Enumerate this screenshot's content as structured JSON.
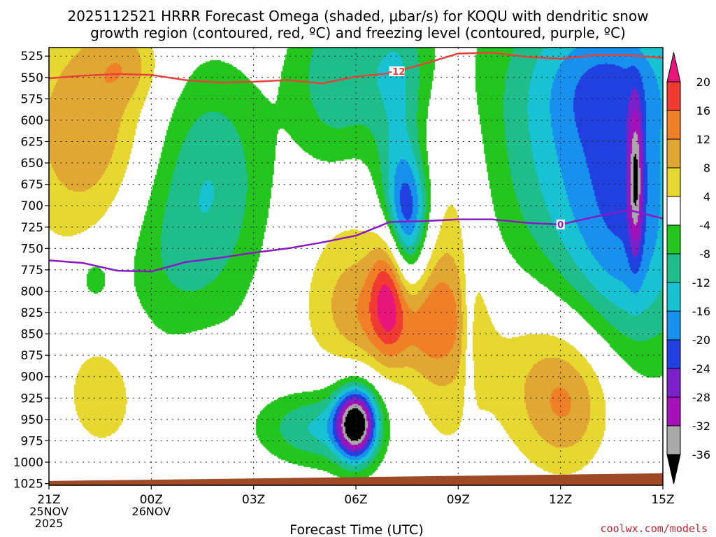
{
  "title_line1": "2025112521 HRRR Forecast Omega (shaded, μbar/s) for KOQU with dendritic snow",
  "title_line2": "growth region (contoured, red, ºC) and freezing level (contoured, purple, ºC)",
  "watermark": "coolwx.com/models",
  "chart_data": {
    "type": "heatmap",
    "xlabel": "Forecast Time (UTC)",
    "ylabel": "",
    "x_ticks": [
      {
        "hour": 0,
        "label": "21Z",
        "sub1": "25NOV",
        "sub2": "2025"
      },
      {
        "hour": 3,
        "label": "00Z",
        "sub1": "26NOV",
        "sub2": ""
      },
      {
        "hour": 6,
        "label": "03Z",
        "sub1": "",
        "sub2": ""
      },
      {
        "hour": 9,
        "label": "06Z",
        "sub1": "",
        "sub2": ""
      },
      {
        "hour": 12,
        "label": "09Z",
        "sub1": "",
        "sub2": ""
      },
      {
        "hour": 15,
        "label": "12Z",
        "sub1": "",
        "sub2": ""
      },
      {
        "hour": 18,
        "label": "15Z",
        "sub1": "",
        "sub2": ""
      }
    ],
    "x_range_hours": [
      0,
      18
    ],
    "y_ticks_hpa": [
      525,
      550,
      575,
      600,
      625,
      650,
      675,
      700,
      725,
      750,
      775,
      800,
      825,
      850,
      875,
      900,
      925,
      950,
      975,
      1000,
      1025
    ],
    "y_range_hpa": [
      515,
      1027
    ],
    "grid": true,
    "colorbar": {
      "labels": [
        "20",
        "16",
        "12",
        "8",
        "4",
        "-4",
        "-8",
        "-12",
        "-16",
        "-20",
        "-24",
        "-28",
        "-32",
        "-36"
      ],
      "bins": [
        {
          "max": 999,
          "min": 20,
          "color": "#e8157a"
        },
        {
          "max": 20,
          "min": 16,
          "color": "#f03a32"
        },
        {
          "max": 16,
          "min": 12,
          "color": "#ef8027"
        },
        {
          "max": 12,
          "min": 8,
          "color": "#e0a733"
        },
        {
          "max": 8,
          "min": 4,
          "color": "#e6d731"
        },
        {
          "max": 4,
          "min": -4,
          "color": "#ffffff"
        },
        {
          "max": -4,
          "min": -8,
          "color": "#24c51e"
        },
        {
          "max": -8,
          "min": -12,
          "color": "#1ebd8a"
        },
        {
          "max": -12,
          "min": -16,
          "color": "#18c2d2"
        },
        {
          "max": -16,
          "min": -20,
          "color": "#1890ee"
        },
        {
          "max": -20,
          "min": -24,
          "color": "#2140e0"
        },
        {
          "max": -24,
          "min": -28,
          "color": "#7a21c9"
        },
        {
          "max": -28,
          "min": -32,
          "color": "#a510b8"
        },
        {
          "max": -32,
          "min": -36,
          "color": "#a9a9a9"
        },
        {
          "max": -36,
          "min": -999,
          "color": "#000000"
        }
      ]
    },
    "omega_features": [
      {
        "hour": 1.3,
        "p": 615,
        "amp": 12.5,
        "sh": 1.5,
        "sp": 100
      },
      {
        "hour": 2.3,
        "p": 535,
        "amp": 6,
        "sh": 0.7,
        "sp": 30
      },
      {
        "hour": 4.1,
        "p": 700,
        "amp": -6.5,
        "sh": 1.5,
        "sp": 135
      },
      {
        "hour": 4.0,
        "p": 645,
        "amp": -3,
        "sh": 1.3,
        "sp": 80
      },
      {
        "hour": 5.2,
        "p": 660,
        "amp": -4,
        "sh": 1.0,
        "sp": 80
      },
      {
        "hour": 3.2,
        "p": 760,
        "amp": -3.5,
        "sh": 1.6,
        "sp": 70
      },
      {
        "hour": 1.3,
        "p": 785,
        "amp": -6,
        "sh": 0.35,
        "sp": 22
      },
      {
        "hour": 8.4,
        "p": 565,
        "amp": -8,
        "sh": 0.9,
        "sp": 85
      },
      {
        "hour": 9.5,
        "p": 535,
        "amp": -5,
        "sh": 1.6,
        "sp": 55
      },
      {
        "hour": 10.3,
        "p": 620,
        "amp": -9,
        "sh": 0.6,
        "sp": 130
      },
      {
        "hour": 10.0,
        "p": 790,
        "amp": 18,
        "sh": 0.38,
        "sp": 55
      },
      {
        "hour": 8.9,
        "p": 820,
        "amp": 8,
        "sh": 1.1,
        "sp": 100
      },
      {
        "hour": 11.5,
        "p": 780,
        "amp": 9,
        "sh": 0.8,
        "sp": 140
      },
      {
        "hour": 10.5,
        "p": 835,
        "amp": 10,
        "sh": 1.3,
        "sp": 45
      },
      {
        "hour": 10.4,
        "p": 735,
        "amp": -16,
        "sh": 0.45,
        "sp": 65
      },
      {
        "hour": 10.7,
        "p": 700,
        "amp": -8,
        "sh": 0.5,
        "sp": 40
      },
      {
        "hour": 1.6,
        "p": 920,
        "amp": 6.5,
        "sh": 0.9,
        "sp": 55
      },
      {
        "hour": 4.9,
        "p": 885,
        "amp": 6,
        "sh": 0.8,
        "sp": 22
      },
      {
        "hour": 9.0,
        "p": 955,
        "amp": -36,
        "sh": 0.4,
        "sp": 28
      },
      {
        "hour": 9.0,
        "p": 935,
        "amp": -7,
        "sh": 1.0,
        "sp": 60
      },
      {
        "hour": 7.7,
        "p": 960,
        "amp": -11,
        "sh": 1.1,
        "sp": 30
      },
      {
        "hour": 12.3,
        "p": 840,
        "amp": -6,
        "sh": 0.15,
        "sp": 60
      },
      {
        "hour": 16.0,
        "p": 610,
        "amp": -16,
        "sh": 2.2,
        "sp": 140
      },
      {
        "hour": 17.0,
        "p": 770,
        "amp": -11,
        "sh": 1.3,
        "sp": 110
      },
      {
        "hour": 16.6,
        "p": 555,
        "amp": -6,
        "sh": 1.5,
        "sp": 50
      },
      {
        "hour": 17.2,
        "p": 670,
        "amp": -18,
        "sh": 0.15,
        "sp": 60
      },
      {
        "hour": 15.0,
        "p": 900,
        "amp": 10,
        "sh": 1.5,
        "sp": 70
      },
      {
        "hour": 15.2,
        "p": 940,
        "amp": 6,
        "sh": 0.8,
        "sp": 50
      }
    ],
    "dgz_line": {
      "label": "-12",
      "label_hour": 10.2,
      "points": [
        [
          0,
          551
        ],
        [
          1,
          548
        ],
        [
          2,
          546
        ],
        [
          3,
          547
        ],
        [
          4,
          553
        ],
        [
          5,
          556
        ],
        [
          6,
          555
        ],
        [
          7,
          553
        ],
        [
          8,
          557
        ],
        [
          9,
          549
        ],
        [
          10,
          545
        ],
        [
          11,
          534
        ],
        [
          12,
          522
        ],
        [
          13,
          521
        ],
        [
          14,
          526
        ],
        [
          15,
          528
        ],
        [
          16,
          524
        ],
        [
          17,
          524
        ],
        [
          18,
          527
        ]
      ]
    },
    "freezing_line": {
      "label": "0",
      "label_hour": 15.0,
      "points": [
        [
          0,
          764
        ],
        [
          1,
          767
        ],
        [
          2,
          776
        ],
        [
          3,
          777
        ],
        [
          4,
          766
        ],
        [
          5,
          761
        ],
        [
          6,
          755
        ],
        [
          7,
          750
        ],
        [
          8,
          743
        ],
        [
          9,
          735
        ],
        [
          10,
          719
        ],
        [
          11,
          718
        ],
        [
          12,
          716
        ],
        [
          13,
          716
        ],
        [
          14,
          720
        ],
        [
          15,
          722
        ],
        [
          16,
          713
        ],
        [
          17,
          705
        ],
        [
          18,
          715
        ]
      ]
    },
    "terrain": {
      "surface_hpa_start": 1022,
      "surface_hpa_end": 1013,
      "color": "#9e4a27"
    }
  }
}
